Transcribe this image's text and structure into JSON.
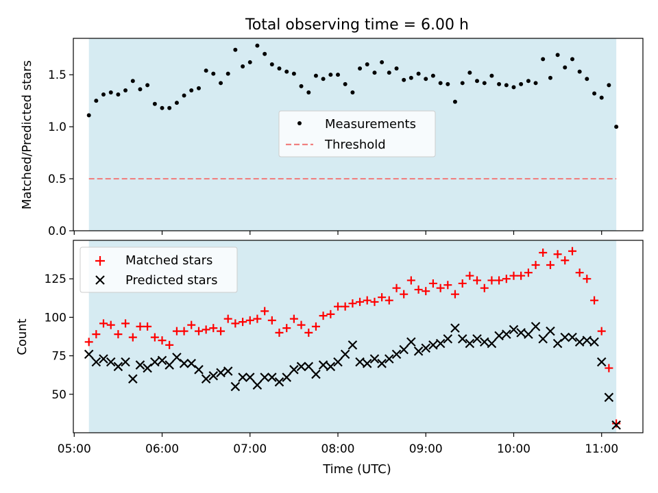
{
  "figure": {
    "title": "Total observing time = 6.00 h",
    "xlabel": "Time (UTC)",
    "x_ticks": [
      "05:00",
      "06:00",
      "07:00",
      "08:00",
      "09:00",
      "10:00",
      "11:00"
    ]
  },
  "colors": {
    "span": "#add8e6",
    "measurements": "#000000",
    "threshold": "#f08080",
    "matched": "#ff0000",
    "predicted": "#000000"
  },
  "chart_data": [
    {
      "type": "scatter",
      "panel": "top",
      "ylabel": "Matched/Predicted stars",
      "x_unit": "hours UTC",
      "xlim": [
        4.99,
        11.47
      ],
      "ylim": [
        0,
        1.85
      ],
      "y_ticks": [
        0.0,
        0.5,
        1.0,
        1.5
      ],
      "y_tick_labels": [
        "0.0",
        "0.5",
        "1.0",
        "1.5"
      ],
      "shaded_span": [
        5.167,
        11.167
      ],
      "legend_position": "center",
      "threshold": {
        "name": "Threshold",
        "value": 0.5,
        "style": "dashed"
      },
      "series": [
        {
          "name": "Measurements",
          "marker": "dot",
          "x": [
            5.167,
            5.25,
            5.333,
            5.417,
            5.5,
            5.583,
            5.667,
            5.75,
            5.833,
            5.917,
            6.0,
            6.083,
            6.167,
            6.25,
            6.333,
            6.417,
            6.5,
            6.583,
            6.667,
            6.75,
            6.833,
            6.917,
            7.0,
            7.083,
            7.167,
            7.25,
            7.333,
            7.417,
            7.5,
            7.583,
            7.667,
            7.75,
            7.833,
            7.917,
            8.0,
            8.083,
            8.167,
            8.25,
            8.333,
            8.417,
            8.5,
            8.583,
            8.667,
            8.75,
            8.833,
            8.917,
            9.0,
            9.083,
            9.167,
            9.25,
            9.333,
            9.417,
            9.5,
            9.583,
            9.667,
            9.75,
            9.833,
            9.917,
            10.0,
            10.083,
            10.167,
            10.25,
            10.333,
            10.417,
            10.5,
            10.583,
            10.667,
            10.75,
            10.833,
            10.917,
            11.0,
            11.083,
            11.167
          ],
          "y": [
            1.11,
            1.25,
            1.31,
            1.33,
            1.31,
            1.35,
            1.44,
            1.36,
            1.4,
            1.22,
            1.18,
            1.18,
            1.23,
            1.3,
            1.35,
            1.37,
            1.54,
            1.51,
            1.42,
            1.51,
            1.74,
            1.58,
            1.62,
            1.78,
            1.7,
            1.6,
            1.56,
            1.53,
            1.51,
            1.39,
            1.33,
            1.49,
            1.46,
            1.5,
            1.5,
            1.41,
            1.33,
            1.56,
            1.6,
            1.52,
            1.62,
            1.52,
            1.56,
            1.45,
            1.47,
            1.51,
            1.46,
            1.49,
            1.42,
            1.41,
            1.24,
            1.42,
            1.52,
            1.44,
            1.42,
            1.49,
            1.41,
            1.4,
            1.38,
            1.41,
            1.44,
            1.42,
            1.65,
            1.47,
            1.69,
            1.57,
            1.65,
            1.53,
            1.46,
            1.32,
            1.28,
            1.4,
            1.0
          ]
        }
      ]
    },
    {
      "type": "scatter",
      "panel": "bottom",
      "ylabel": "Count",
      "x_unit": "hours UTC",
      "xlim": [
        4.99,
        11.47
      ],
      "ylim": [
        25,
        150
      ],
      "y_ticks": [
        50,
        75,
        100,
        125
      ],
      "y_tick_labels": [
        "50",
        "75",
        "100",
        "125"
      ],
      "shaded_span": [
        5.167,
        11.167
      ],
      "legend_position": "upper left",
      "series": [
        {
          "name": "Matched stars",
          "marker": "plus",
          "x": [
            5.167,
            5.25,
            5.333,
            5.417,
            5.5,
            5.583,
            5.667,
            5.75,
            5.833,
            5.917,
            6.0,
            6.083,
            6.167,
            6.25,
            6.333,
            6.417,
            6.5,
            6.583,
            6.667,
            6.75,
            6.833,
            6.917,
            7.0,
            7.083,
            7.167,
            7.25,
            7.333,
            7.417,
            7.5,
            7.583,
            7.667,
            7.75,
            7.833,
            7.917,
            8.0,
            8.083,
            8.167,
            8.25,
            8.333,
            8.417,
            8.5,
            8.583,
            8.667,
            8.75,
            8.833,
            8.917,
            9.0,
            9.083,
            9.167,
            9.25,
            9.333,
            9.417,
            9.5,
            9.583,
            9.667,
            9.75,
            9.833,
            9.917,
            10.0,
            10.083,
            10.167,
            10.25,
            10.333,
            10.417,
            10.5,
            10.583,
            10.667,
            10.75,
            10.833,
            10.917,
            11.0,
            11.083,
            11.167
          ],
          "y": [
            84,
            89,
            96,
            95,
            89,
            96,
            87,
            94,
            94,
            87,
            85,
            82,
            91,
            91,
            95,
            91,
            92,
            93,
            91,
            99,
            96,
            97,
            98,
            99,
            104,
            98,
            90,
            93,
            99,
            95,
            90,
            94,
            101,
            102,
            107,
            107,
            109,
            110,
            111,
            110,
            113,
            111,
            119,
            115,
            124,
            118,
            117,
            122,
            119,
            121,
            115,
            122,
            127,
            124,
            119,
            124,
            124,
            125,
            127,
            127,
            129,
            134,
            142,
            134,
            141,
            137,
            143,
            129,
            125,
            111,
            91,
            67,
            31
          ]
        },
        {
          "name": "Predicted stars",
          "marker": "x",
          "x": [
            5.167,
            5.25,
            5.333,
            5.417,
            5.5,
            5.583,
            5.667,
            5.75,
            5.833,
            5.917,
            6.0,
            6.083,
            6.167,
            6.25,
            6.333,
            6.417,
            6.5,
            6.583,
            6.667,
            6.75,
            6.833,
            6.917,
            7.0,
            7.083,
            7.167,
            7.25,
            7.333,
            7.417,
            7.5,
            7.583,
            7.667,
            7.75,
            7.833,
            7.917,
            8.0,
            8.083,
            8.167,
            8.25,
            8.333,
            8.417,
            8.5,
            8.583,
            8.667,
            8.75,
            8.833,
            8.917,
            9.0,
            9.083,
            9.167,
            9.25,
            9.333,
            9.417,
            9.5,
            9.583,
            9.667,
            9.75,
            9.833,
            9.917,
            10.0,
            10.083,
            10.167,
            10.25,
            10.333,
            10.417,
            10.5,
            10.583,
            10.667,
            10.75,
            10.833,
            10.917,
            11.0,
            11.083,
            11.167
          ],
          "y": [
            76,
            71,
            73,
            71,
            68,
            71,
            60,
            69,
            67,
            71,
            72,
            69,
            74,
            70,
            70,
            66,
            60,
            62,
            64,
            65,
            55,
            61,
            61,
            56,
            61,
            61,
            58,
            61,
            66,
            68,
            68,
            63,
            69,
            68,
            71,
            76,
            82,
            71,
            70,
            73,
            70,
            73,
            76,
            79,
            84,
            78,
            80,
            82,
            83,
            86,
            93,
            86,
            83,
            86,
            84,
            83,
            88,
            89,
            92,
            90,
            89,
            94,
            86,
            91,
            83,
            87,
            87,
            84,
            85,
            84,
            71,
            48,
            30
          ]
        }
      ]
    }
  ]
}
